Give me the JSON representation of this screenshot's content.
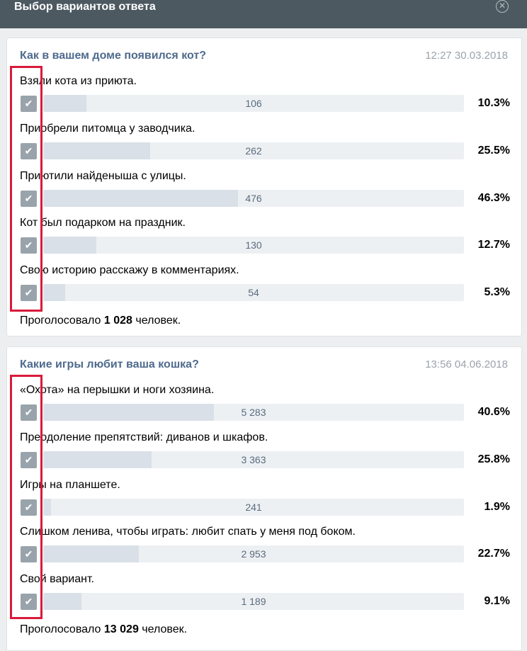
{
  "dialog": {
    "title": "Выбор вариантов ответа",
    "close_icon": "close-icon"
  },
  "polls": [
    {
      "question": "Как в вашем доме появился кот?",
      "datetime": "12:27 30.03.2018",
      "options": [
        {
          "label": "Взяли кота из приюта.",
          "count": "106",
          "percent": "10.3%",
          "fraction": 0.103
        },
        {
          "label": "Приобрели питомца у заводчика.",
          "count": "262",
          "percent": "25.5%",
          "fraction": 0.255
        },
        {
          "label": "Приютили найденыша с улицы.",
          "count": "476",
          "percent": "46.3%",
          "fraction": 0.463
        },
        {
          "label": "Кот был подарком на праздник.",
          "count": "130",
          "percent": "12.7%",
          "fraction": 0.127
        },
        {
          "label": "Свою историю расскажу в комментариях.",
          "count": "54",
          "percent": "5.3%",
          "fraction": 0.053
        }
      ],
      "total_prefix": "Проголосовало",
      "total_count": "1 028",
      "total_suffix": "человек."
    },
    {
      "question": "Какие игры любит ваша кошка?",
      "datetime": "13:56 04.06.2018",
      "options": [
        {
          "label": "«Охота» на перышки и ноги хозяина.",
          "count": "5 283",
          "percent": "40.6%",
          "fraction": 0.406
        },
        {
          "label": "Преодоление препятствий: диванов и шкафов.",
          "count": "3 363",
          "percent": "25.8%",
          "fraction": 0.258
        },
        {
          "label": "Игры на планшете.",
          "count": "241",
          "percent": "1.9%",
          "fraction": 0.019
        },
        {
          "label": "Слишком ленива, чтобы играть: любит спать у меня под боком.",
          "count": "2 953",
          "percent": "22.7%",
          "fraction": 0.227
        },
        {
          "label": "Свой вариант.",
          "count": "1 189",
          "percent": "9.1%",
          "fraction": 0.091
        }
      ],
      "total_prefix": "Проголосовало",
      "total_count": "13 029",
      "total_suffix": "человек."
    }
  ],
  "colors": {
    "highlight": "#d91a3b",
    "header": "#4d5961",
    "question": "#4e6a8d"
  }
}
